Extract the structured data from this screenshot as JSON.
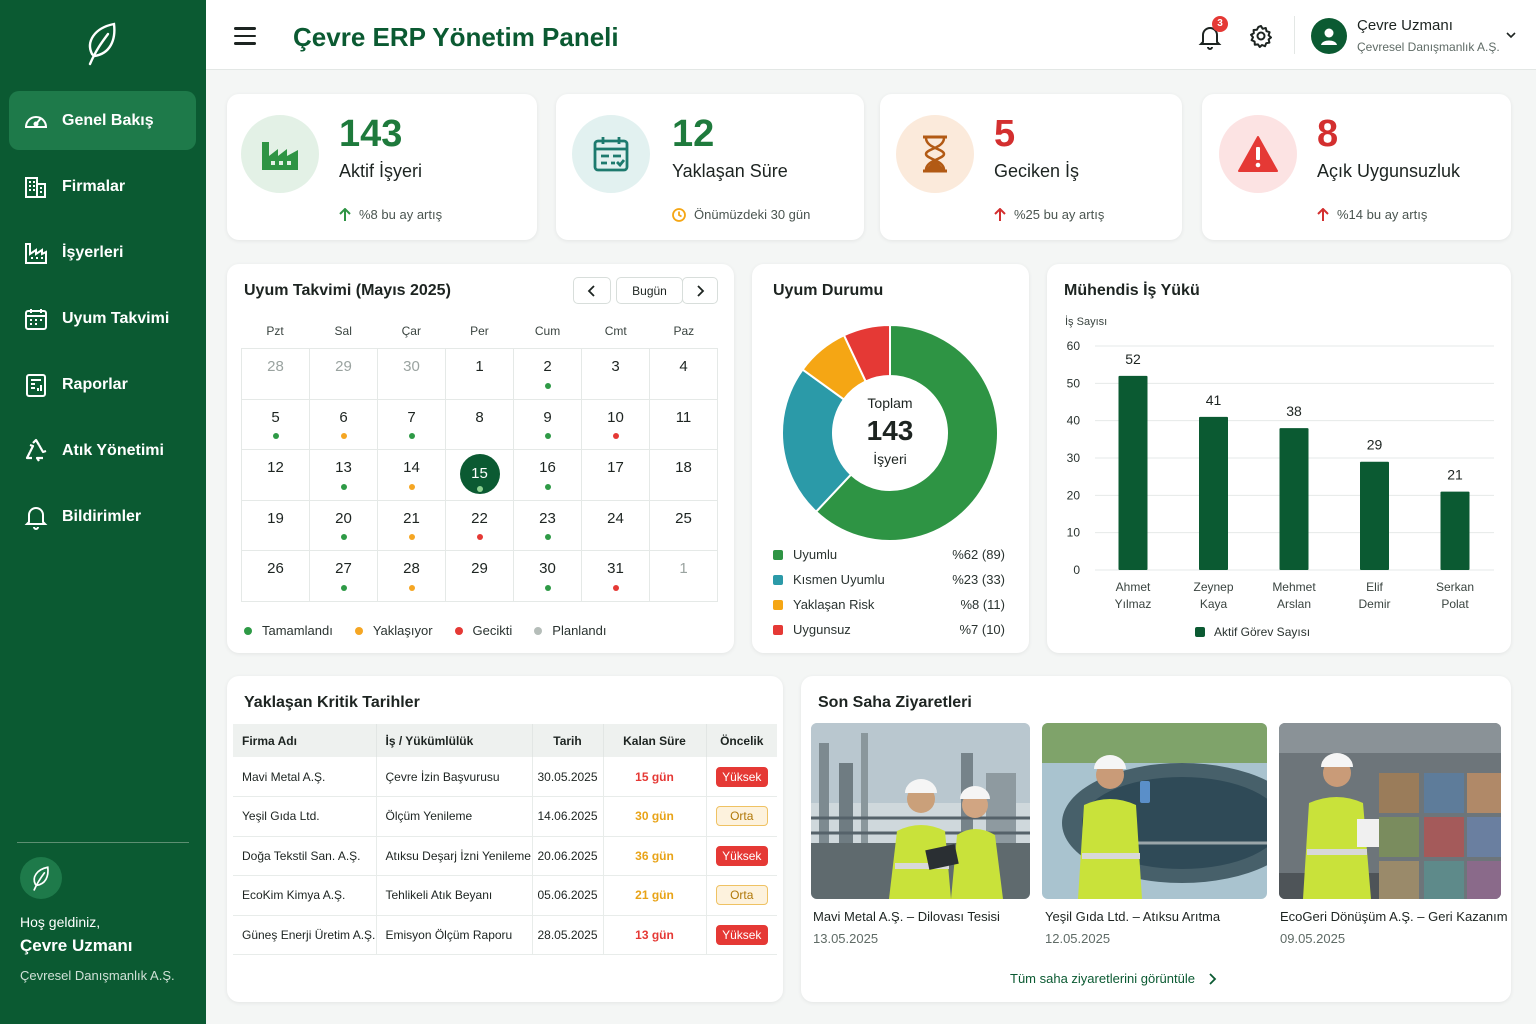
{
  "app": {
    "title": "Çevre ERP Yönetim Paneli"
  },
  "sidebar": {
    "items": [
      {
        "label": "Genel Bakış",
        "icon": "gauge-icon"
      },
      {
        "label": "Firmalar",
        "icon": "building-icon"
      },
      {
        "label": "İşyerleri",
        "icon": "factory-icon"
      },
      {
        "label": "Uyum Takvimi",
        "icon": "calendar-icon"
      },
      {
        "label": "Raporlar",
        "icon": "report-icon"
      },
      {
        "label": "Atık Yönetimi",
        "icon": "recycle-icon"
      },
      {
        "label": "Bildirimler",
        "icon": "bell-icon"
      }
    ],
    "welcome": "Hoş geldiniz,",
    "user_name": "Çevre Uzmanı",
    "user_company": "Çevresel Danışmanlık A.Ş."
  },
  "header": {
    "notification_count": "3",
    "user_name": "Çevre Uzmanı",
    "user_company": "Çevresel Danışmanlık A.Ş."
  },
  "kpis": [
    {
      "value": "143",
      "label": "Aktif İşyeri",
      "sub": "%8 bu ay artış",
      "color": "#1e7a3c"
    },
    {
      "value": "12",
      "label": "Yaklaşan Süre",
      "sub": "Önümüzdeki 30 gün",
      "color": "#1e7a3c"
    },
    {
      "value": "5",
      "label": "Geciken İş",
      "sub": "%25 bu ay artış",
      "color": "#d32f2f"
    },
    {
      "value": "8",
      "label": "Açık Uygunsuzluk",
      "sub": "%14 bu ay artış",
      "color": "#d32f2f"
    }
  ],
  "calendar": {
    "title": "Uyum Takvimi (Mayıs 2025)",
    "today_label": "Bugün",
    "weekdays": [
      "Pzt",
      "Sal",
      "Çar",
      "Per",
      "Cum",
      "Cmt",
      "Paz"
    ],
    "weeks": [
      [
        {
          "d": "28",
          "m": true
        },
        {
          "d": "29",
          "m": true
        },
        {
          "d": "30",
          "m": true
        },
        {
          "d": "1"
        },
        {
          "d": "2",
          "s": "done"
        },
        {
          "d": "3"
        },
        {
          "d": "4"
        }
      ],
      [
        {
          "d": "5",
          "s": "done"
        },
        {
          "d": "6",
          "s": "soon"
        },
        {
          "d": "7",
          "s": "done"
        },
        {
          "d": "8"
        },
        {
          "d": "9",
          "s": "done"
        },
        {
          "d": "10",
          "s": "late"
        },
        {
          "d": "11"
        }
      ],
      [
        {
          "d": "12"
        },
        {
          "d": "13",
          "s": "done"
        },
        {
          "d": "14",
          "s": "soon"
        },
        {
          "d": "15",
          "s": "done",
          "t": true
        },
        {
          "d": "16",
          "s": "done"
        },
        {
          "d": "17"
        },
        {
          "d": "18"
        }
      ],
      [
        {
          "d": "19"
        },
        {
          "d": "20",
          "s": "done"
        },
        {
          "d": "21",
          "s": "soon"
        },
        {
          "d": "22",
          "s": "late"
        },
        {
          "d": "23",
          "s": "done"
        },
        {
          "d": "24"
        },
        {
          "d": "25"
        }
      ],
      [
        {
          "d": "26"
        },
        {
          "d": "27",
          "s": "done"
        },
        {
          "d": "28",
          "s": "soon"
        },
        {
          "d": "29"
        },
        {
          "d": "30",
          "s": "done"
        },
        {
          "d": "31",
          "s": "late"
        },
        {
          "d": "1",
          "m": true
        }
      ]
    ],
    "legend": {
      "done": "Tamamlandı",
      "soon": "Yaklaşıyor",
      "late": "Gecikti",
      "planned": "Planlandı"
    },
    "colors": {
      "done": "#2e9a46",
      "soon": "#f5a623",
      "late": "#e53935",
      "planned": "#b5bdb9"
    }
  },
  "compliance": {
    "title": "Uyum Durumu",
    "center_top": "Toplam",
    "center_value": "143",
    "center_bottom": "İşyeri",
    "slices": [
      {
        "label": "Uyumlu",
        "pct_label": "%62 (89)",
        "value": 62,
        "color": "#2e9444"
      },
      {
        "label": "Kısmen Uyumlu",
        "pct_label": "%23 (33)",
        "value": 23,
        "color": "#2b9aa8"
      },
      {
        "label": "Yaklaşan Risk",
        "pct_label": "%8 (11)",
        "value": 8,
        "color": "#f5a614"
      },
      {
        "label": "Uygunsuz",
        "pct_label": "%7 (10)",
        "value": 7,
        "color": "#e53935"
      }
    ]
  },
  "chart_data": {
    "type": "bar",
    "title": "Mühendis İş Yükü",
    "ylabel": "İş Sayısı",
    "categories": [
      [
        "Ahmet",
        "Yılmaz"
      ],
      [
        "Zeynep",
        "Kaya"
      ],
      [
        "Mehmet",
        "Arslan"
      ],
      [
        "Elif",
        "Demir"
      ],
      [
        "Serkan",
        "Polat"
      ]
    ],
    "series": [
      {
        "name": "Aktif Görev Sayısı",
        "values": [
          52,
          41,
          38,
          29,
          21
        ]
      }
    ],
    "ylim": [
      0,
      60
    ],
    "yticks": [
      0,
      10,
      20,
      30,
      40,
      50,
      60
    ],
    "grid": true,
    "legend": "bottom",
    "color": "#0b5a32"
  },
  "critical": {
    "title": "Yaklaşan Kritik Tarihler",
    "headers": [
      "Firma Adı",
      "İş / Yükümlülük",
      "Tarih",
      "Kalan Süre",
      "Öncelik"
    ],
    "rows": [
      [
        "Mavi Metal A.Ş.",
        "Çevre İzin Başvurusu",
        "30.05.2025",
        "15 gün",
        "Yüksek"
      ],
      [
        "Yeşil Gıda Ltd.",
        "Ölçüm Yenileme",
        "14.06.2025",
        "30 gün",
        "Orta"
      ],
      [
        "Doğa Tekstil San. A.Ş.",
        "Atıksu Deşarj İzni Yenileme",
        "20.06.2025",
        "36 gün",
        "Yüksek"
      ],
      [
        "EcoKim Kimya A.Ş.",
        "Tehlikeli Atık Beyanı",
        "05.06.2025",
        "21 gün",
        "Orta"
      ],
      [
        "Güneş Enerji Üretim A.Ş.",
        "Emisyon Ölçüm Raporu",
        "28.05.2025",
        "13 gün",
        "Yüksek"
      ]
    ]
  },
  "visits": {
    "title": "Son Saha Ziyaretleri",
    "items": [
      {
        "title": "Mavi Metal A.Ş. – Dilovası Tesisi",
        "date": "13.05.2025"
      },
      {
        "title": "Yeşil Gıda Ltd. – Atıksu Arıtma",
        "date": "12.05.2025"
      },
      {
        "title": "EcoGeri Dönüşüm A.Ş. – Geri Kazanım",
        "date": "09.05.2025"
      }
    ],
    "see_all": "Tüm saha ziyaretlerini görüntüle"
  }
}
